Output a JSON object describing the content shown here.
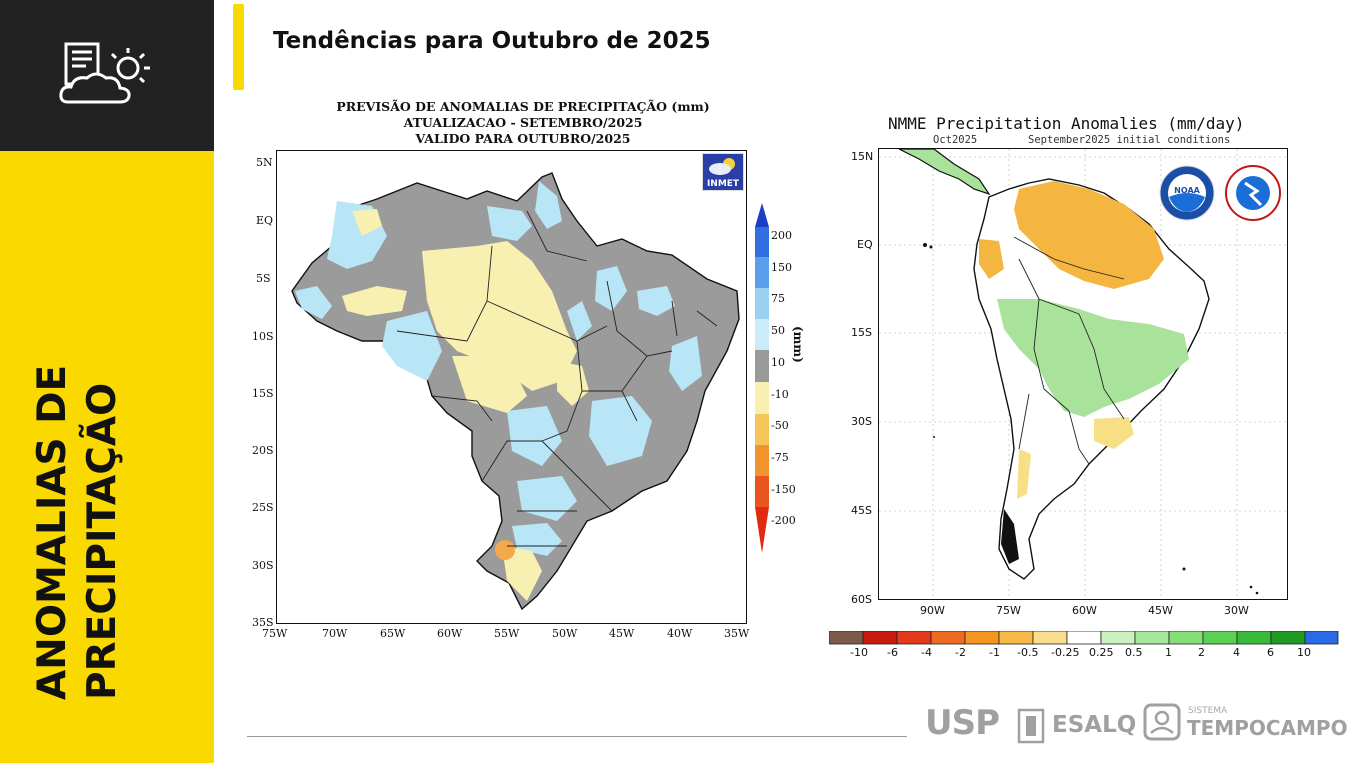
{
  "sidebar": {
    "icon": "weather-report-icon",
    "title_lines": [
      "ANOMALIAS DE",
      "PRECIPITAÇÃO"
    ]
  },
  "page": {
    "title": "Tendências para Outubro de 2025"
  },
  "inmet_map": {
    "title_lines": [
      "PREVISÃO DE ANOMALIAS DE PRECIPITAÇÃO (mm)",
      "ATUALIZACAO - SETEMBRO/2025",
      "VALIDO PARA OUTUBRO/2025"
    ],
    "logo_text": "INMET",
    "lat_labels": [
      "5N",
      "EQ",
      "5S",
      "10S",
      "15S",
      "20S",
      "25S",
      "30S",
      "35S"
    ],
    "lon_labels": [
      "75W",
      "70W",
      "65W",
      "60W",
      "55W",
      "50W",
      "45W",
      "40W",
      "35W"
    ],
    "colorbar_labels": [
      "200",
      "150",
      "75",
      "50",
      "10",
      "-10",
      "-50",
      "-75",
      "-150",
      "-200"
    ],
    "colorbar_colors": [
      "#1a3fc4",
      "#2f6fe0",
      "#5aa0ee",
      "#9bd0f2",
      "#c9ecf8",
      "#9a9a9a",
      "#f7f0b0",
      "#f4c65a",
      "#f0952e",
      "#e8561e",
      "#e02a12"
    ],
    "unit": "(mm)",
    "colors": {
      "gray": "#9b9b9b",
      "light_blue": "#b9e6f6",
      "light_yellow": "#f7f0b0",
      "orange": "#f2a94a"
    }
  },
  "nmme_map": {
    "title": "NMME Precipitation Anomalies (mm/day)",
    "subtitle_left": "Oct2025",
    "subtitle_right": "September2025 initial conditions",
    "lat_labels": [
      "15N",
      "EQ",
      "15S",
      "30S",
      "45S",
      "60S"
    ],
    "lon_labels": [
      "90W",
      "75W",
      "60W",
      "45W",
      "30W"
    ],
    "colorbar_labels": [
      "-10",
      "-6",
      "-4",
      "-2",
      "-1",
      "-0.5",
      "-0.25",
      "0.25",
      "0.5",
      "1",
      "2",
      "4",
      "6",
      "10"
    ],
    "colorbar_colors": [
      "#7d5a4a",
      "#c81c10",
      "#e23a1a",
      "#ee6a20",
      "#f49520",
      "#f8b84a",
      "#f8de8a",
      "#ffffff",
      "#c9f2c0",
      "#a6e89a",
      "#86de78",
      "#5ecf55",
      "#38bb3a",
      "#1e9a22",
      "#2a6ae6"
    ],
    "logos": [
      "noaa-logo",
      "national-weather-service-logo"
    ],
    "colors": {
      "orange": "#f4b640",
      "green": "#a9e39b",
      "yellow": "#f7df86"
    }
  },
  "footer": {
    "logos": [
      "USP",
      "ESALQ",
      "SISTEMA",
      "TEMPOCAMPO"
    ]
  }
}
